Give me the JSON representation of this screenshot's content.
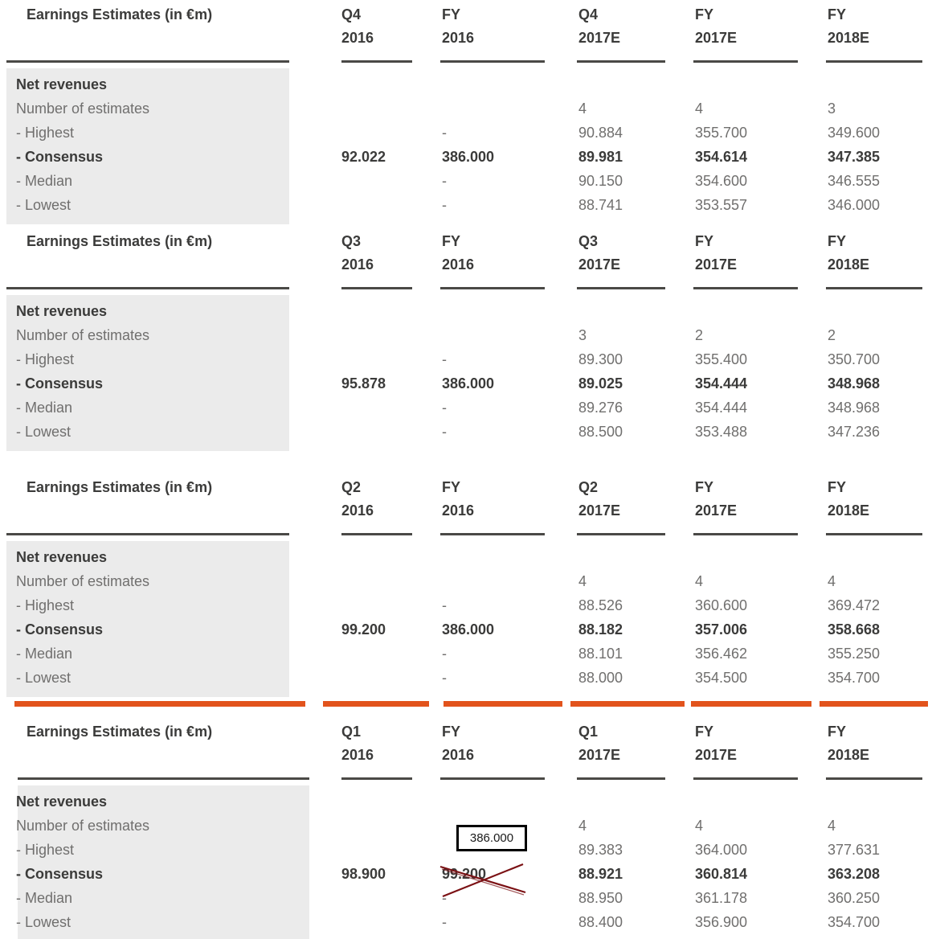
{
  "styles": {
    "highlight_bar_color": "#e2531c",
    "shade_color": "#ebebeb",
    "header_text_color": "#3b3b3a",
    "row_text_color": "#706f6e",
    "rule_color": "#4a4946",
    "strike_color": "#7b1114",
    "annotation_box_border_color": "#000000"
  },
  "tables": [
    {
      "id": "q4-2016",
      "title": "Earnings Estimates (in €m)",
      "highlighted": false,
      "columns": [
        {
          "line1": "Q4",
          "line2": "2016"
        },
        {
          "line1": "FY",
          "line2": "2016"
        },
        {
          "line1": "Q4",
          "line2": "2017E"
        },
        {
          "line1": "FY",
          "line2": "2017E"
        },
        {
          "line1": "FY",
          "line2": "2018E"
        }
      ],
      "section_label": "Net revenues",
      "rows": [
        {
          "label": "Number of estimates",
          "bold": false,
          "values": [
            "",
            "",
            "4",
            "4",
            "3"
          ]
        },
        {
          "label": "- Highest",
          "bold": false,
          "values": [
            "",
            "-",
            "90.884",
            "355.700",
            "349.600"
          ]
        },
        {
          "label": "- Consensus",
          "bold": true,
          "values": [
            "92.022",
            "386.000",
            "89.981",
            "354.614",
            "347.385"
          ]
        },
        {
          "label": "- Median",
          "bold": false,
          "values": [
            "",
            "-",
            "90.150",
            "354.600",
            "346.555"
          ]
        },
        {
          "label": "- Lowest",
          "bold": false,
          "values": [
            "",
            "-",
            "88.741",
            "353.557",
            "346.000"
          ]
        }
      ]
    },
    {
      "id": "q3-2016",
      "title": "Earnings Estimates (in €m)",
      "highlighted": false,
      "columns": [
        {
          "line1": "Q3",
          "line2": "2016"
        },
        {
          "line1": "FY",
          "line2": "2016"
        },
        {
          "line1": "Q3",
          "line2": "2017E"
        },
        {
          "line1": "FY",
          "line2": "2017E"
        },
        {
          "line1": "FY",
          "line2": "2018E"
        }
      ],
      "section_label": "Net revenues",
      "rows": [
        {
          "label": "Number of estimates",
          "bold": false,
          "values": [
            "",
            "",
            "3",
            "2",
            "2"
          ]
        },
        {
          "label": "- Highest",
          "bold": false,
          "values": [
            "",
            "-",
            "89.300",
            "355.400",
            "350.700"
          ]
        },
        {
          "label": "- Consensus",
          "bold": true,
          "values": [
            "95.878",
            "386.000",
            "89.025",
            "354.444",
            "348.968"
          ]
        },
        {
          "label": "- Median",
          "bold": false,
          "values": [
            "",
            "-",
            "89.276",
            "354.444",
            "348.968"
          ]
        },
        {
          "label": "- Lowest",
          "bold": false,
          "values": [
            "",
            "-",
            "88.500",
            "353.488",
            "347.236"
          ]
        }
      ]
    },
    {
      "id": "q2-2016",
      "title": "Earnings Estimates (in €m)",
      "highlighted": false,
      "columns": [
        {
          "line1": "Q2",
          "line2": "2016"
        },
        {
          "line1": "FY",
          "line2": "2016"
        },
        {
          "line1": "Q2",
          "line2": "2017E"
        },
        {
          "line1": "FY",
          "line2": "2017E"
        },
        {
          "line1": "FY",
          "line2": "2018E"
        }
      ],
      "section_label": "Net revenues",
      "rows": [
        {
          "label": "Number of estimates",
          "bold": false,
          "values": [
            "",
            "",
            "4",
            "4",
            "4"
          ]
        },
        {
          "label": "- Highest",
          "bold": false,
          "values": [
            "",
            "-",
            "88.526",
            "360.600",
            "369.472"
          ]
        },
        {
          "label": "- Consensus",
          "bold": true,
          "values": [
            "99.200",
            "386.000",
            "88.182",
            "357.006",
            "358.668"
          ]
        },
        {
          "label": "- Median",
          "bold": false,
          "values": [
            "",
            "-",
            "88.101",
            "356.462",
            "355.250"
          ]
        },
        {
          "label": "- Lowest",
          "bold": false,
          "values": [
            "",
            "-",
            "88.000",
            "354.500",
            "354.700"
          ]
        }
      ]
    },
    {
      "id": "q1-2016",
      "title": "Earnings Estimates (in €m)",
      "highlighted": true,
      "columns": [
        {
          "line1": "Q1",
          "line2": "2016"
        },
        {
          "line1": "FY",
          "line2": "2016"
        },
        {
          "line1": "Q1",
          "line2": "2017E"
        },
        {
          "line1": "FY",
          "line2": "2017E"
        },
        {
          "line1": "FY",
          "line2": "2018E"
        }
      ],
      "section_label": "Net revenues",
      "rows": [
        {
          "label": "Number of estimates",
          "bold": false,
          "values": [
            "",
            "",
            "4",
            "4",
            "4"
          ]
        },
        {
          "label": "- Highest",
          "bold": false,
          "values": [
            "",
            "",
            "89.383",
            "364.000",
            "377.631"
          ]
        },
        {
          "label": "- Consensus",
          "bold": true,
          "values": [
            "98.900",
            "99.200",
            "88.921",
            "360.814",
            "363.208"
          ]
        },
        {
          "label": "- Median",
          "bold": false,
          "values": [
            "",
            "-",
            "88.950",
            "361.178",
            "360.250"
          ]
        },
        {
          "label": "- Lowest",
          "bold": false,
          "values": [
            "",
            "-",
            "88.400",
            "356.900",
            "354.700"
          ]
        }
      ],
      "annotation": {
        "boxed_value": "386.000",
        "struck_value": "99.200"
      }
    }
  ]
}
